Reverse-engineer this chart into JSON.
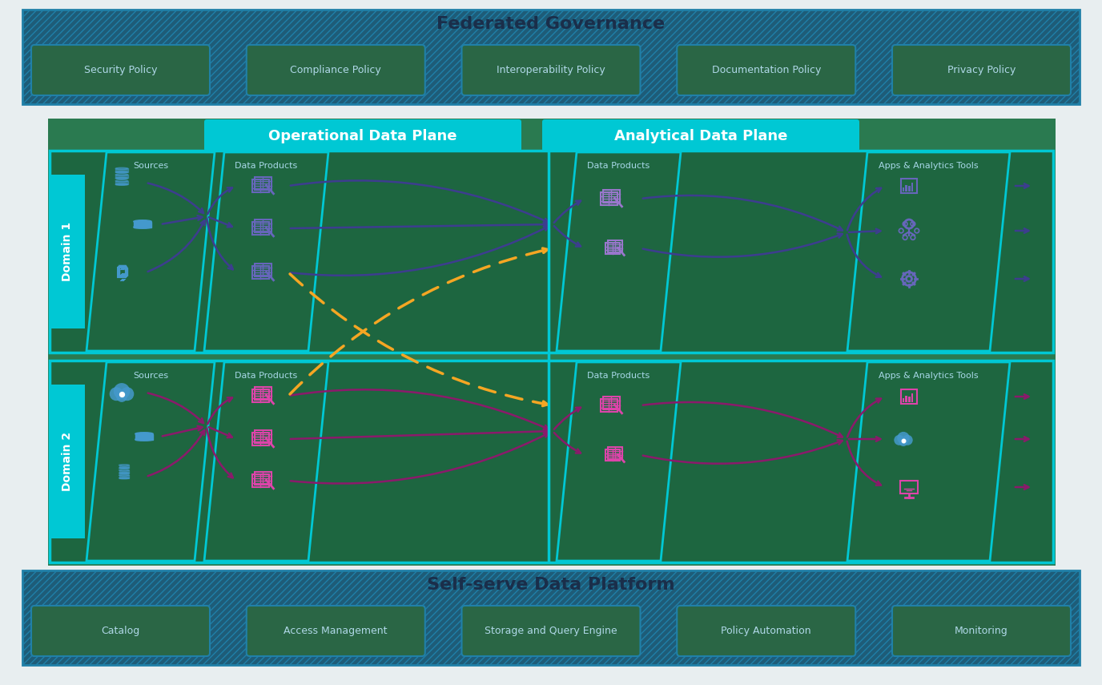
{
  "fig_bg": "#e8eef0",
  "main_green": "#2a7a50",
  "teal_border": "#00c8d4",
  "teal_bright": "#00e5f0",
  "dark_teal_bg": "#1a5c6e",
  "hatch_bg": "#1e5c78",
  "inner_green": "#2a6645",
  "inner_box_bg": "#2a7a55",
  "inner_box_border": "#1a6080",
  "title_dark": "#1a2e4a",
  "title_white": "#ffffff",
  "text_light": "#c8e8f0",
  "text_label": "#a8d8e8",
  "federated_gov_title": "Federated Governance",
  "federated_items": [
    "Security Policy",
    "Compliance Policy",
    "Interoperability Policy",
    "Documentation Policy",
    "Privacy Policy"
  ],
  "self_serve_title": "Self-serve Data Platform",
  "self_serve_items": [
    "Catalog",
    "Access Management",
    "Storage and Query Engine",
    "Policy Automation",
    "Monitoring"
  ],
  "op_plane_label": "Operational Data Plane",
  "an_plane_label": "Analytical Data Plane",
  "domain1_label": "Domain 1",
  "domain2_label": "Domain 2",
  "sources_label": "Sources",
  "data_products_label": "Data Products",
  "apps_label": "Apps & Analytics Tools",
  "d1_arrow_color": "#3d3d8f",
  "d1_icon_color": "#6666bb",
  "d1_source_color": "#4499cc",
  "d2_arrow_color": "#8b1a6b",
  "d2_icon_color": "#dd44aa",
  "d2_source_color": "#4499cc",
  "cross_color": "#f5a623",
  "para_slant": 25,
  "para_fill": "#1e6640",
  "para_border": "#00c8d4",
  "para_lw": 2.0
}
